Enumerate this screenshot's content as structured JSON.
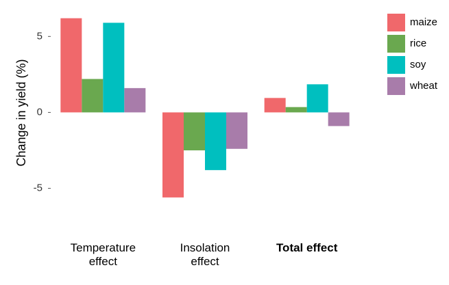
{
  "chart_data": {
    "type": "bar",
    "y_label": "Change in yield (%)",
    "categories": [
      "Temperature effect",
      "Insolation effect",
      "Total effect"
    ],
    "series": [
      {
        "name": "maize",
        "color": "#f0686b",
        "values": [
          6.2,
          -5.6,
          0.95
        ]
      },
      {
        "name": "rice",
        "color": "#6aa84f",
        "values": [
          2.2,
          -2.5,
          0.35
        ]
      },
      {
        "name": "soy",
        "color": "#00bfbf",
        "values": [
          5.9,
          -3.8,
          1.85
        ]
      },
      {
        "name": "wheat",
        "color": "#a87caa",
        "values": [
          1.6,
          -2.4,
          -0.9
        ]
      }
    ],
    "ylim": [
      -6.1,
      6.5
    ],
    "yticks": [
      -5,
      0,
      5
    ],
    "grid": false
  }
}
